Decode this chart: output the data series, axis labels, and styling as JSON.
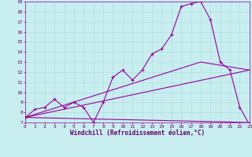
{
  "bg_color": "#c8eef0",
  "line_color": "#990099",
  "grid_color": "#b0dde0",
  "xlabel": "Windchill (Refroidissement éolien,°C)",
  "xlabel_color": "#660066",
  "tick_color": "#660066",
  "xmin": 0,
  "xmax": 23,
  "ymin": 7,
  "ymax": 19,
  "lines": [
    {
      "x": [
        0,
        1,
        2,
        3,
        4,
        5,
        6,
        7,
        8,
        9,
        10,
        11,
        12,
        13,
        14,
        15,
        16,
        17,
        18,
        19,
        20,
        21,
        22,
        23
      ],
      "y": [
        7.5,
        8.3,
        8.5,
        9.3,
        8.5,
        9.0,
        8.5,
        7.0,
        9.0,
        11.5,
        12.2,
        11.2,
        12.2,
        13.8,
        14.3,
        15.7,
        18.5,
        18.8,
        19.0,
        17.2,
        13.0,
        12.2,
        8.5,
        6.8
      ]
    },
    {
      "x": [
        0,
        23
      ],
      "y": [
        7.5,
        12.2
      ]
    },
    {
      "x": [
        0,
        23
      ],
      "y": [
        7.5,
        7.0
      ]
    },
    {
      "x": [
        0,
        18,
        23
      ],
      "y": [
        7.5,
        13.0,
        12.2
      ]
    }
  ]
}
